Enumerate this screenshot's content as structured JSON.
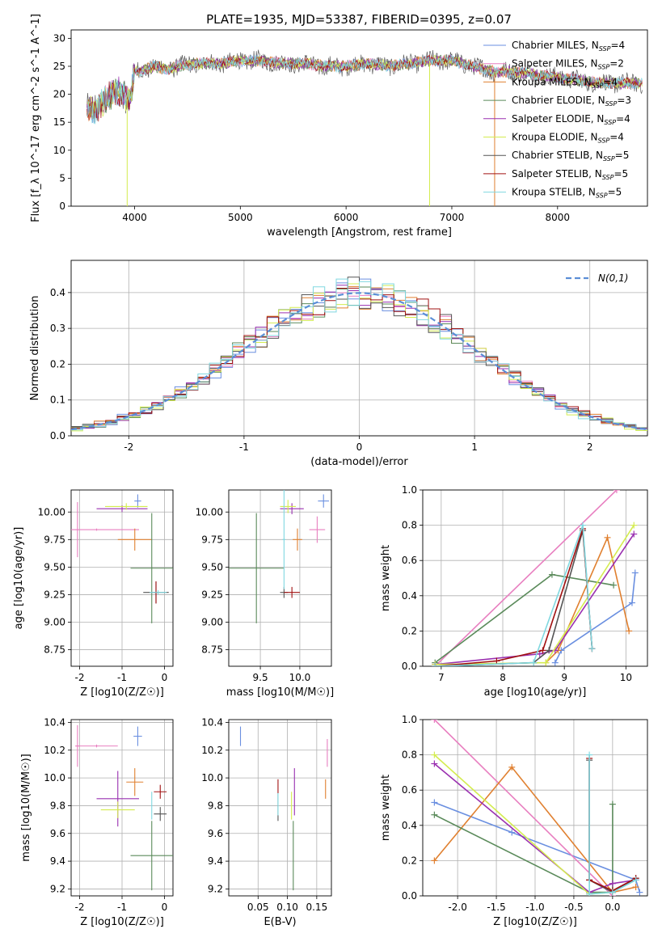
{
  "figure_title": "PLATE=1935, MJD=53387, FIBERID=0395, z=0.07",
  "colors": {
    "Chabrier MILES": "#6a8fe0",
    "Salpeter MILES": "#e87fc0",
    "Kroupa MILES": "#e08030",
    "Chabrier ELODIE": "#5a8a5a",
    "Salpeter ELODIE": "#9a30b0",
    "Kroupa ELODIE": "#d4ec50",
    "Chabrier STELIB": "#555555",
    "Salpeter STELIB": "#a01010",
    "Kroupa STELIB": "#80d8e0",
    "normal": "#5b8ed6",
    "grid": "#b0b0b0"
  },
  "chart_data": [
    {
      "id": "spectrum",
      "type": "line",
      "title": "PLATE=1935, MJD=53387, FIBERID=0395, z=0.07",
      "xlabel": "wavelength [Angstrom, rest frame]",
      "ylabel": "Flux [f_λ 10^-17 erg cm^-2 s^-1 A^-1]",
      "xlim": [
        3400,
        8850
      ],
      "ylim": [
        0,
        31.5
      ],
      "xticks": [
        4000,
        5000,
        6000,
        7000,
        8000
      ],
      "yticks": [
        0,
        5,
        10,
        15,
        20,
        25,
        30
      ],
      "grid": false,
      "legend_position": "upper-right",
      "legend": [
        {
          "name": "Chabrier MILES",
          "label": "Chabrier MILES, N",
          "sub": "SSP",
          "tail": "=4"
        },
        {
          "name": "Salpeter MILES",
          "label": "Salpeter MILES, N",
          "sub": "SSP",
          "tail": "=2"
        },
        {
          "name": "Kroupa MILES",
          "label": "Kroupa MILES, N",
          "sub": "SSP",
          "tail": "=4"
        },
        {
          "name": "Chabrier ELODIE",
          "label": "Chabrier ELODIE, N",
          "sub": "SSP",
          "tail": "=3"
        },
        {
          "name": "Salpeter ELODIE",
          "label": "Salpeter ELODIE, N",
          "sub": "SSP",
          "tail": "=4"
        },
        {
          "name": "Kroupa ELODIE",
          "label": "Kroupa ELODIE, N",
          "sub": "SSP",
          "tail": "=4"
        },
        {
          "name": "Chabrier STELIB",
          "label": "Chabrier STELIB, N",
          "sub": "SSP",
          "tail": "=5"
        },
        {
          "name": "Salpeter STELIB",
          "label": "Salpeter STELIB, N",
          "sub": "SSP",
          "tail": "=5"
        },
        {
          "name": "Kroupa STELIB",
          "label": "Kroupa STELIB, N",
          "sub": "SSP",
          "tail": "=5"
        }
      ],
      "continuum": {
        "x": [
          3550,
          3600,
          3650,
          3700,
          3750,
          3800,
          3850,
          3900,
          3950,
          4000,
          4100,
          4200,
          4300,
          4400,
          4600,
          4800,
          5000,
          5200,
          5400,
          5600,
          5800,
          6000,
          6200,
          6400,
          6600,
          6800,
          7000,
          7200,
          7400,
          7600,
          7800,
          8000,
          8200,
          8400,
          8600,
          8800
        ],
        "y": [
          17.5,
          17.0,
          17.5,
          18.5,
          19.5,
          20.5,
          20.5,
          20.0,
          18.5,
          24.0,
          24.5,
          25.0,
          24.5,
          25.0,
          25.5,
          25.5,
          26.0,
          26.0,
          25.5,
          25.5,
          25.0,
          25.0,
          25.5,
          25.0,
          25.5,
          26.0,
          26.0,
          25.0,
          24.0,
          24.0,
          23.5,
          23.0,
          22.5,
          22.0,
          22.0,
          22.0
        ]
      },
      "spikes_down": [
        {
          "x": 3930,
          "y": 0
        },
        {
          "x": 6790,
          "y": 0
        },
        {
          "x": 7405,
          "y": 0
        }
      ]
    },
    {
      "id": "residuals",
      "type": "line",
      "xlabel": "(data-model)/error",
      "ylabel": "Normed distribution",
      "xlim": [
        -2.5,
        2.5
      ],
      "ylim": [
        0,
        0.49
      ],
      "xticks": [
        -2,
        -1,
        0,
        1,
        2
      ],
      "yticks": [
        0.0,
        0.1,
        0.2,
        0.3,
        0.4
      ],
      "grid": true,
      "legend_position": "upper-right",
      "normal_label": "N(0,1)",
      "normal_curve": {
        "mean": 0,
        "sigma": 1,
        "style": "dashed"
      },
      "hist_bin_width": 0.1,
      "hist_note": "nine step histograms (one per fit) closely following N(0,1)"
    },
    {
      "id": "age_vs_Z",
      "type": "scatter",
      "xlabel": "Z [log10(Z/Z☉)]",
      "ylabel": "age  [log10(age/yr)]",
      "xlim": [
        -2.2,
        0.2
      ],
      "ylim": [
        8.6,
        10.2
      ],
      "xticks": [
        -2,
        -1,
        0
      ],
      "yticks": [
        8.75,
        9.0,
        9.25,
        9.5,
        9.75,
        10.0
      ],
      "grid": true,
      "points": [
        {
          "model": "Chabrier MILES",
          "x": -0.63,
          "y": 10.1,
          "xerr": 0.08,
          "yerr": 0.06
        },
        {
          "model": "Salpeter MILES",
          "x": -2.05,
          "y": 9.84,
          "xerr": 0.05,
          "yerr": 0.25
        },
        {
          "model": "Salpeter MILES",
          "x": -1.6,
          "y": 9.84,
          "xerr": 1.0,
          "yerr": 0.01
        },
        {
          "model": "Kroupa MILES",
          "x": -0.7,
          "y": 9.75,
          "xerr": 0.4,
          "yerr": 0.1
        },
        {
          "model": "Chabrier ELODIE",
          "x": -0.3,
          "y": 9.49,
          "xerr": 0.5,
          "yerr": 0.5
        },
        {
          "model": "Salpeter ELODIE",
          "x": -1.0,
          "y": 10.03,
          "xerr": 0.6,
          "yerr": 0.03
        },
        {
          "model": "Kroupa ELODIE",
          "x": -0.9,
          "y": 10.05,
          "xerr": 0.5,
          "yerr": 0.03
        },
        {
          "model": "Chabrier STELIB",
          "x": -0.2,
          "y": 9.27,
          "xerr": 0.3,
          "yerr": 0.1
        },
        {
          "model": "Salpeter STELIB",
          "x": -0.2,
          "y": 9.27,
          "xerr": 0.05,
          "yerr": 0.1
        },
        {
          "model": "Kroupa STELIB",
          "x": -0.15,
          "y": 9.27,
          "xerr": 0.2,
          "yerr": 0.02
        }
      ]
    },
    {
      "id": "age_vs_mass",
      "type": "scatter",
      "xlabel": "mass [log10(M/M☉)]",
      "ylabel": "",
      "xlim": [
        9.1,
        10.4
      ],
      "ylim": [
        8.6,
        10.2
      ],
      "xticks": [
        9.5,
        10.0
      ],
      "yticks": [
        8.75,
        9.0,
        9.25,
        9.5,
        9.75,
        10.0
      ],
      "grid": true,
      "points": [
        {
          "model": "Chabrier MILES",
          "x": 10.3,
          "y": 10.1,
          "xerr": 0.07,
          "yerr": 0.06
        },
        {
          "model": "Salpeter MILES",
          "x": 10.22,
          "y": 9.84,
          "xerr": 0.1,
          "yerr": 0.12
        },
        {
          "model": "Kroupa MILES",
          "x": 9.97,
          "y": 9.75,
          "xerr": 0.06,
          "yerr": 0.1
        },
        {
          "model": "Chabrier ELODIE",
          "x": 9.45,
          "y": 9.49,
          "xerr": 0.35,
          "yerr": 0.5
        },
        {
          "model": "Salpeter ELODIE",
          "x": 9.9,
          "y": 10.03,
          "xerr": 0.15,
          "yerr": 0.05
        },
        {
          "model": "Kroupa ELODIE",
          "x": 9.85,
          "y": 10.05,
          "xerr": 0.1,
          "yerr": 0.06
        },
        {
          "model": "Chabrier STELIB",
          "x": 9.8,
          "y": 9.27,
          "xerr": 0.05,
          "yerr": 0.05
        },
        {
          "model": "Salpeter STELIB",
          "x": 9.9,
          "y": 9.27,
          "xerr": 0.1,
          "yerr": 0.05
        },
        {
          "model": "Kroupa STELIB",
          "x": 9.8,
          "y": 9.75,
          "xerr": 0.02,
          "yerr": 0.45
        }
      ]
    },
    {
      "id": "weight_vs_age",
      "type": "line",
      "xlabel": "age  [log10(age/yr)]",
      "ylabel": "mass weight",
      "xlim": [
        6.7,
        10.35
      ],
      "ylim": [
        0,
        1.0
      ],
      "xticks": [
        7,
        8,
        9,
        10
      ],
      "yticks": [
        0.0,
        0.2,
        0.4,
        0.6,
        0.8,
        1.0
      ],
      "grid": true,
      "series": [
        {
          "model": "Chabrier MILES",
          "x": [
            8.85,
            8.95,
            10.1,
            10.15
          ],
          "y": [
            0.02,
            0.09,
            0.36,
            0.53
          ]
        },
        {
          "model": "Salpeter MILES",
          "x": [
            6.9,
            9.85
          ],
          "y": [
            0.0,
            1.0
          ]
        },
        {
          "model": "Kroupa MILES",
          "x": [
            8.7,
            8.9,
            9.7,
            10.05
          ],
          "y": [
            0.02,
            0.09,
            0.73,
            0.2
          ]
        },
        {
          "model": "Chabrier ELODIE",
          "x": [
            6.9,
            8.8,
            9.8
          ],
          "y": [
            0.02,
            0.52,
            0.46
          ]
        },
        {
          "model": "Salpeter ELODIE",
          "x": [
            6.9,
            8.6,
            8.85,
            10.13
          ],
          "y": [
            0.01,
            0.07,
            0.09,
            0.75
          ]
        },
        {
          "model": "Kroupa ELODIE",
          "x": [
            6.9,
            8.7,
            10.13
          ],
          "y": [
            0.01,
            0.02,
            0.8
          ]
        },
        {
          "model": "Chabrier STELIB",
          "x": [
            6.9,
            8.5,
            8.75,
            9.3,
            9.45
          ],
          "y": [
            0.0,
            0.02,
            0.09,
            0.77,
            0.1
          ]
        },
        {
          "model": "Salpeter STELIB",
          "x": [
            6.9,
            7.9,
            8.65,
            9.3,
            9.45
          ],
          "y": [
            0.0,
            0.03,
            0.09,
            0.78,
            0.1
          ]
        },
        {
          "model": "Kroupa STELIB",
          "x": [
            6.9,
            8.5,
            9.3,
            9.45
          ],
          "y": [
            0.0,
            0.02,
            0.8,
            0.1
          ]
        }
      ]
    },
    {
      "id": "mass_vs_Z",
      "type": "scatter",
      "xlabel": "Z [log10(Z/Z☉)]",
      "ylabel": "mass [log10(M/M☉)]",
      "xlim": [
        -2.2,
        0.2
      ],
      "ylim": [
        9.15,
        10.42
      ],
      "xticks": [
        -2,
        -1,
        0
      ],
      "yticks": [
        9.2,
        9.4,
        9.6,
        9.8,
        10.0,
        10.2,
        10.4
      ],
      "grid": true,
      "points": [
        {
          "model": "Chabrier MILES",
          "x": -0.63,
          "y": 10.3,
          "xerr": 0.1,
          "yerr": 0.07
        },
        {
          "model": "Salpeter MILES",
          "x": -2.05,
          "y": 10.23,
          "xerr": 0.05,
          "yerr": 0.15
        },
        {
          "model": "Salpeter MILES",
          "x": -1.6,
          "y": 10.23,
          "xerr": 0.5,
          "yerr": 0.01
        },
        {
          "model": "Kroupa MILES",
          "x": -0.7,
          "y": 9.97,
          "xerr": 0.2,
          "yerr": 0.1
        },
        {
          "model": "Chabrier ELODIE",
          "x": -0.3,
          "y": 9.44,
          "xerr": 0.5,
          "yerr": 0.25
        },
        {
          "model": "Salpeter ELODIE",
          "x": -1.1,
          "y": 9.85,
          "xerr": 0.5,
          "yerr": 0.2
        },
        {
          "model": "Kroupa ELODIE",
          "x": -1.1,
          "y": 9.77,
          "xerr": 0.4,
          "yerr": 0.06
        },
        {
          "model": "Chabrier STELIB",
          "x": -0.1,
          "y": 9.74,
          "xerr": 0.15,
          "yerr": 0.05
        },
        {
          "model": "Salpeter STELIB",
          "x": -0.1,
          "y": 9.9,
          "xerr": 0.15,
          "yerr": 0.05
        },
        {
          "model": "Kroupa STELIB",
          "x": -0.3,
          "y": 9.8,
          "xerr": 0.01,
          "yerr": 0.1
        }
      ]
    },
    {
      "id": "mass_vs_ebv",
      "type": "scatter",
      "xlabel": "E(B-V)",
      "ylabel": "",
      "xlim": [
        0.0,
        0.175
      ],
      "ylim": [
        9.15,
        10.42
      ],
      "xticks": [
        0.05,
        0.1,
        0.15
      ],
      "yticks": [
        9.2,
        9.4,
        9.6,
        9.8,
        10.0,
        10.2,
        10.4
      ],
      "grid": true,
      "points": [
        {
          "model": "Chabrier MILES",
          "x": 0.02,
          "y": 10.3,
          "xerr": 0.0,
          "yerr": 0.07
        },
        {
          "model": "Salpeter MILES",
          "x": 0.168,
          "y": 10.18,
          "xerr": 0.0,
          "yerr": 0.1
        },
        {
          "model": "Kroupa MILES",
          "x": 0.165,
          "y": 9.92,
          "xerr": 0.0,
          "yerr": 0.07
        },
        {
          "model": "Chabrier ELODIE",
          "x": 0.11,
          "y": 9.44,
          "xerr": 0.0,
          "yerr": 0.25
        },
        {
          "model": "Salpeter ELODIE",
          "x": 0.112,
          "y": 9.9,
          "xerr": 0.0,
          "yerr": 0.17
        },
        {
          "model": "Kroupa ELODIE",
          "x": 0.107,
          "y": 9.8,
          "xerr": 0.0,
          "yerr": 0.1
        },
        {
          "model": "Chabrier STELIB",
          "x": 0.084,
          "y": 9.79,
          "xerr": 0.0,
          "yerr": 0.1
        },
        {
          "model": "Salpeter STELIB",
          "x": 0.084,
          "y": 9.94,
          "xerr": 0.0,
          "yerr": 0.05
        },
        {
          "model": "Kroupa STELIB",
          "x": 0.084,
          "y": 9.81,
          "xerr": 0.0,
          "yerr": 0.08
        }
      ]
    },
    {
      "id": "weight_vs_Z",
      "type": "line",
      "xlabel": "Z [log10(Z/Z☉)]",
      "ylabel": "mass weight",
      "xlim": [
        -2.45,
        0.45
      ],
      "ylim": [
        0,
        1.0
      ],
      "xticks": [
        -2.0,
        -1.5,
        -1.0,
        -0.5,
        0.0
      ],
      "yticks": [
        0.0,
        0.2,
        0.4,
        0.6,
        0.8,
        1.0
      ],
      "grid": true,
      "series": [
        {
          "model": "Chabrier MILES",
          "x": [
            -2.3,
            -1.3,
            0.3,
            0.35
          ],
          "y": [
            0.53,
            0.36,
            0.09,
            0.02
          ]
        },
        {
          "model": "Salpeter MILES",
          "x": [
            -2.3,
            0.0
          ],
          "y": [
            1.0,
            0.0
          ]
        },
        {
          "model": "Kroupa MILES",
          "x": [
            -2.3,
            -1.3,
            0.0,
            0.3
          ],
          "y": [
            0.2,
            0.73,
            0.02,
            0.05
          ]
        },
        {
          "model": "Chabrier ELODIE",
          "x": [
            -2.3,
            -0.3,
            0.0,
            0.0
          ],
          "y": [
            0.46,
            0.02,
            0.02,
            0.52
          ]
        },
        {
          "model": "Salpeter ELODIE",
          "x": [
            -2.3,
            -0.3,
            0.0,
            0.3
          ],
          "y": [
            0.75,
            0.02,
            0.07,
            0.09
          ]
        },
        {
          "model": "Kroupa ELODIE",
          "x": [
            -2.3,
            -0.3,
            0.0
          ],
          "y": [
            0.8,
            0.01,
            0.02
          ]
        },
        {
          "model": "Chabrier STELIB",
          "x": [
            -0.3,
            -0.3,
            0.0,
            0.3
          ],
          "y": [
            0.77,
            0.09,
            0.02,
            0.1
          ]
        },
        {
          "model": "Salpeter STELIB",
          "x": [
            -0.3,
            -0.3,
            0.0,
            0.3
          ],
          "y": [
            0.78,
            0.09,
            0.03,
            0.1
          ]
        },
        {
          "model": "Kroupa STELIB",
          "x": [
            -0.3,
            -0.3,
            0.0,
            0.3
          ],
          "y": [
            0.8,
            0.01,
            0.02,
            0.09
          ]
        }
      ]
    }
  ]
}
